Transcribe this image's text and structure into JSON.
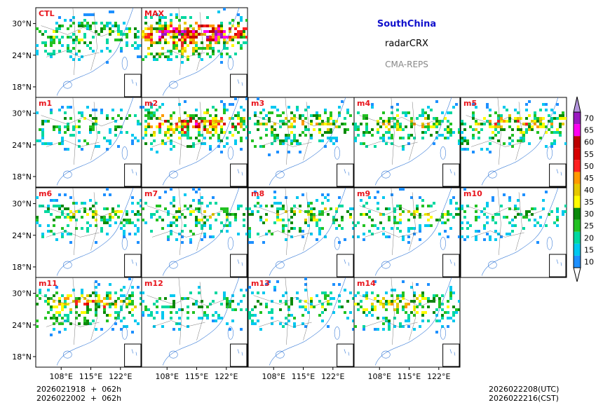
{
  "header": {
    "region": "SouthChina",
    "variable": "radarCRX",
    "model": "CMA-REPS"
  },
  "footer": {
    "init_utc": "2026021918  +  062h",
    "init_cst": "2026022002  +  062h",
    "valid_utc": "2026022208(UTC)",
    "valid_cst": "2026022216(CST)"
  },
  "chart_data": {
    "type": "heatmap",
    "title": "SouthChina radarCRX CMA-REPS",
    "panels": [
      "CTL",
      "MAX",
      "m1",
      "m2",
      "m3",
      "m4",
      "m5",
      "m6",
      "m7",
      "m8",
      "m9",
      "m10",
      "m11",
      "m12",
      "m13",
      "m14"
    ],
    "panel_intensity": [
      0.45,
      0.95,
      0.4,
      0.75,
      0.55,
      0.5,
      0.6,
      0.45,
      0.45,
      0.5,
      0.45,
      0.35,
      0.6,
      0.35,
      0.4,
      0.55
    ],
    "latitude_ticks": [
      "30°N",
      "24°N",
      "18°N"
    ],
    "longitude_ticks": [
      "108°E",
      "115°E",
      "122°E"
    ],
    "lat_range": [
      16,
      33
    ],
    "lon_range": [
      102,
      127
    ],
    "colorbar": {
      "levels": [
        10,
        15,
        20,
        25,
        30,
        35,
        40,
        45,
        50,
        55,
        60,
        65,
        70
      ],
      "colors": [
        "#1e90ff",
        "#00c8f0",
        "#00d8a0",
        "#22c222",
        "#0a8a0a",
        "#fffc00",
        "#e6c800",
        "#ff9900",
        "#ff2020",
        "#d60000",
        "#bb0000",
        "#ff00f0",
        "#9a18c0"
      ],
      "extend_below": "#ffffff",
      "extend_above": "#b394dc"
    }
  }
}
